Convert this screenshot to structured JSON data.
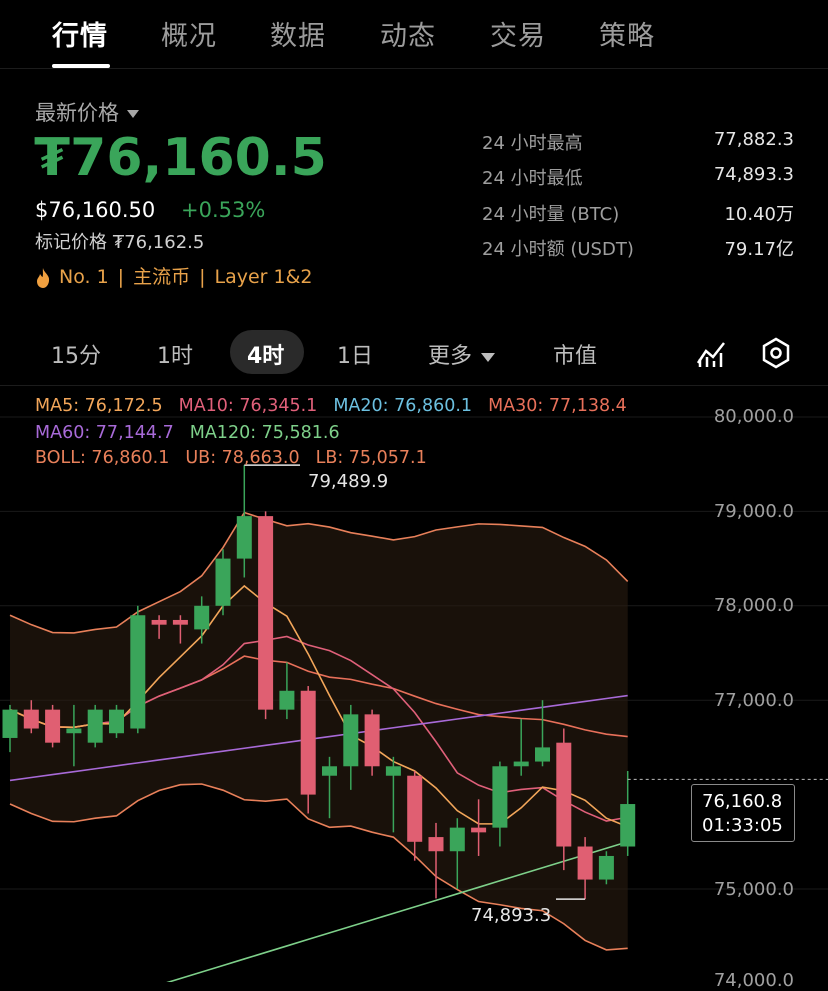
{
  "tabs": [
    "行情",
    "概况",
    "数据",
    "动态",
    "交易",
    "策略"
  ],
  "price": {
    "latest_label": "最新价格",
    "big": "₮76,160.5",
    "usd": "$76,160.50",
    "change": "+0.53%",
    "mark": "标记价格 ₮76,162.5",
    "tags": [
      "No. 1",
      "主流币",
      "Layer 1&2"
    ]
  },
  "stats": [
    {
      "label": "24 小时最高",
      "value": "77,882.3"
    },
    {
      "label": "24 小时最低",
      "value": "74,893.3"
    },
    {
      "label": "24 小时量 (BTC)",
      "value": "10.40万"
    },
    {
      "label": "24 小时额 (USDT)",
      "value": "79.17亿"
    }
  ],
  "intervals": {
    "i15": "15分",
    "i1h": "1时",
    "i4h": "4时",
    "i1d": "1日",
    "more": "更多",
    "mcap": "市值"
  },
  "indicators": {
    "ma5": "MA5: 76,172.5",
    "ma10": "MA10: 76,345.1",
    "ma20": "MA20: 76,860.1",
    "ma30": "MA30: 77,138.4",
    "ma60": "MA60: 77,144.7",
    "ma120": "MA120: 75,581.6",
    "boll": "BOLL: 76,860.1",
    "ub": "UB: 78,663.0",
    "lb": "LB: 75,057.1"
  },
  "colors": {
    "up": "#3aa55a",
    "down": "#e05f72",
    "ma5": "#f2a65a",
    "ma10": "#e0607a",
    "ma20": "#6cc0e0",
    "ma30": "#e8705a",
    "ma60": "#a86ad8",
    "ma120": "#7ed08a",
    "boll": "#e8805a"
  },
  "chart_data": {
    "type": "candlestick",
    "y_ticks": [
      "80,000.0",
      "79,000.0",
      "78,000.0",
      "77,000.0",
      "75,000.0",
      "74,000.0"
    ],
    "high_marker": "79,489.9",
    "low_marker": "74,893.3",
    "current_price": "76,160.8",
    "countdown": "01:33:05",
    "candles": [
      {
        "o": 76600,
        "c": 76900,
        "h": 76950,
        "l": 76450
      },
      {
        "o": 76900,
        "c": 76700,
        "h": 77000,
        "l": 76650
      },
      {
        "o": 76900,
        "c": 76550,
        "h": 76950,
        "l": 76500
      },
      {
        "o": 76650,
        "c": 76700,
        "h": 76950,
        "l": 76300
      },
      {
        "o": 76550,
        "c": 76900,
        "h": 76950,
        "l": 76500
      },
      {
        "o": 76650,
        "c": 76900,
        "h": 76950,
        "l": 76600
      },
      {
        "o": 76700,
        "c": 77900,
        "h": 78000,
        "l": 76650
      },
      {
        "o": 77850,
        "c": 77800,
        "h": 77900,
        "l": 77650
      },
      {
        "o": 77850,
        "c": 77800,
        "h": 77900,
        "l": 77600
      },
      {
        "o": 77750,
        "c": 78000,
        "h": 78100,
        "l": 77600
      },
      {
        "o": 78000,
        "c": 78500,
        "h": 78600,
        "l": 77900
      },
      {
        "o": 78500,
        "c": 78950,
        "h": 79489.9,
        "l": 78300
      },
      {
        "o": 78950,
        "c": 76900,
        "h": 79000,
        "l": 76800
      },
      {
        "o": 76900,
        "c": 77100,
        "h": 77400,
        "l": 76800
      },
      {
        "o": 77100,
        "c": 76000,
        "h": 77150,
        "l": 75800
      },
      {
        "o": 76200,
        "c": 76300,
        "h": 76400,
        "l": 75750
      },
      {
        "o": 76300,
        "c": 76850,
        "h": 76950,
        "l": 76050
      },
      {
        "o": 76850,
        "c": 76300,
        "h": 76900,
        "l": 76200
      },
      {
        "o": 76200,
        "c": 76300,
        "h": 76400,
        "l": 75600
      },
      {
        "o": 76200,
        "c": 75500,
        "h": 76250,
        "l": 75300
      },
      {
        "o": 75550,
        "c": 75400,
        "h": 75700,
        "l": 74900
      },
      {
        "o": 75400,
        "c": 75650,
        "h": 75750,
        "l": 75000
      },
      {
        "o": 75650,
        "c": 75600,
        "h": 75950,
        "l": 75350
      },
      {
        "o": 75650,
        "c": 76300,
        "h": 76350,
        "l": 75450
      },
      {
        "o": 76300,
        "c": 76350,
        "h": 76800,
        "l": 76200
      },
      {
        "o": 76350,
        "c": 76500,
        "h": 77000,
        "l": 76300
      },
      {
        "o": 76550,
        "c": 75450,
        "h": 76700,
        "l": 75200
      },
      {
        "o": 75450,
        "c": 75100,
        "h": 75550,
        "l": 74893.3
      },
      {
        "o": 75100,
        "c": 75350,
        "h": 75400,
        "l": 75050
      },
      {
        "o": 75450,
        "c": 75900,
        "h": 76250,
        "l": 75350
      }
    ]
  }
}
